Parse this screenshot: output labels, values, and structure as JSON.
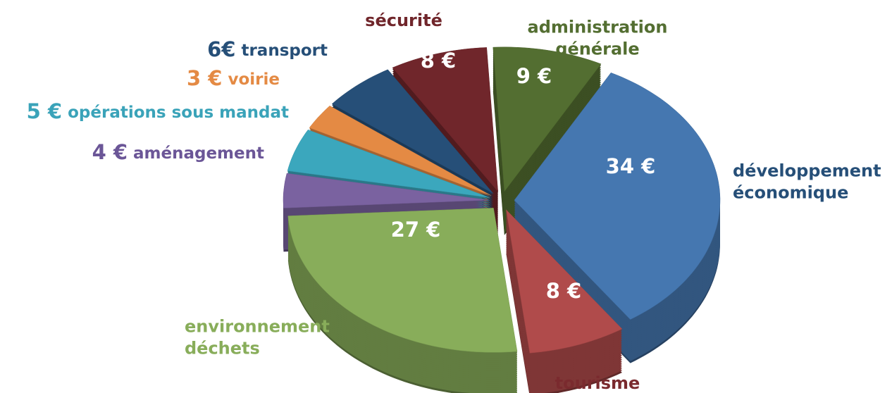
{
  "chart_data": {
    "type": "pie3d",
    "categories": [
      "développement\néconomique",
      "tourisme",
      "environnement\ndéchets",
      "aménagement",
      "opérations sous mandat",
      "voirie",
      "transport",
      "sécurité",
      "administration\ngénérale"
    ],
    "values": [
      34,
      8,
      27,
      4,
      5,
      3,
      6,
      8,
      9
    ],
    "value_labels": [
      "34 €",
      "8 €",
      "27 €",
      "4 €",
      "5 €",
      "3 €",
      "6€",
      "8 €",
      "9 €"
    ],
    "colors": [
      "#4577b0",
      "#b04b4b",
      "#88ad5a",
      "#7a62a0",
      "#3ba7bd",
      "#e48a44",
      "#264f78",
      "#70262b",
      "#536e31"
    ],
    "label_colors": [
      "#264f78",
      "#7a2a2e",
      "#88ad5a",
      "#6b5697",
      "#3aa3b9",
      "#e48a44",
      "#264f78",
      "#70262b",
      "#536e31"
    ]
  }
}
